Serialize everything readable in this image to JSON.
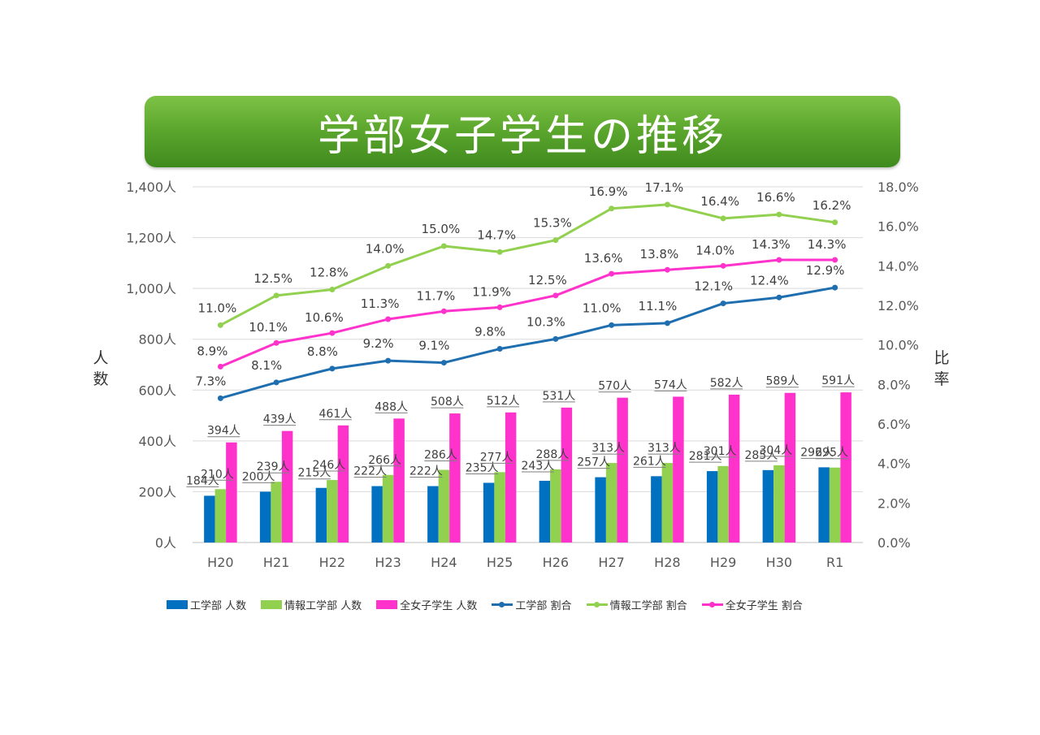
{
  "title": "学部女子学生の推移",
  "y_left_label": [
    "人",
    "数"
  ],
  "y_right_label": [
    "比",
    "率"
  ],
  "colors": {
    "engineering": "#0070c0",
    "info_engineering": "#92d050",
    "all_women": "#ff33cc",
    "engineering_line": "#1f6fb0",
    "info_line": "#92d050",
    "all_women_line": "#ff33cc"
  },
  "chart_data": {
    "type": "bar",
    "title": "学部女子学生の推移",
    "categories": [
      "H20",
      "H21",
      "H22",
      "H23",
      "H24",
      "H25",
      "H26",
      "H27",
      "H28",
      "H29",
      "H30",
      "R1"
    ],
    "y_left": {
      "ylim": [
        0,
        1400
      ],
      "ticks": [
        0,
        200,
        400,
        600,
        800,
        1000,
        1200,
        1400
      ],
      "tick_labels": [
        "0人",
        "200人",
        "400人",
        "600人",
        "800人",
        "1,000人",
        "1,200人",
        "1,400人"
      ]
    },
    "y_right": {
      "ylim": [
        0,
        18
      ],
      "ticks": [
        0,
        2,
        4,
        6,
        8,
        10,
        12,
        14,
        16,
        18
      ],
      "tick_labels": [
        "0.0%",
        "2.0%",
        "4.0%",
        "6.0%",
        "8.0%",
        "10.0%",
        "12.0%",
        "14.0%",
        "16.0%",
        "18.0%"
      ]
    },
    "bar_series": [
      {
        "name": "工学部 人数",
        "color_key": "engineering",
        "values": [
          184,
          200,
          215,
          222,
          222,
          235,
          243,
          257,
          261,
          281,
          285,
          296
        ],
        "labels": [
          "184人",
          "200人",
          "215人",
          "222人",
          "222人",
          "235人",
          "243人",
          "257人",
          "261人",
          "281人",
          "285人",
          "296人"
        ]
      },
      {
        "name": "情報工学部 人数",
        "color_key": "info_engineering",
        "values": [
          210,
          239,
          246,
          266,
          286,
          277,
          288,
          313,
          313,
          301,
          304,
          295
        ],
        "labels": [
          "210人",
          "239人",
          "246人",
          "266人",
          "286人",
          "277人",
          "288人",
          "313人",
          "313人",
          "301人",
          "304人",
          "295人"
        ]
      },
      {
        "name": "全女子学生 人数",
        "color_key": "all_women",
        "values": [
          394,
          439,
          461,
          488,
          508,
          512,
          531,
          570,
          574,
          582,
          589,
          591
        ],
        "labels": [
          "394人",
          "439人",
          "461人",
          "488人",
          "508人",
          "512人",
          "531人",
          "570人",
          "574人",
          "582人",
          "589人",
          "591人"
        ]
      }
    ],
    "line_series": [
      {
        "name": "工学部 割合",
        "color_key": "engineering_line",
        "values": [
          7.3,
          8.1,
          8.8,
          9.2,
          9.1,
          9.8,
          10.3,
          11.0,
          11.1,
          12.1,
          12.4,
          12.9
        ],
        "labels": [
          "7.3%",
          "8.1%",
          "8.8%",
          "9.2%",
          "9.1%",
          "9.8%",
          "10.3%",
          "11.0%",
          "11.1%",
          "12.1%",
          "12.4%",
          "12.9%"
        ]
      },
      {
        "name": "情報工学部 割合",
        "color_key": "info_line",
        "values": [
          11.0,
          12.5,
          12.8,
          14.0,
          15.0,
          14.7,
          15.3,
          16.9,
          17.1,
          16.4,
          16.6,
          16.2
        ],
        "labels": [
          "11.0%",
          "12.5%",
          "12.8%",
          "14.0%",
          "15.0%",
          "14.7%",
          "15.3%",
          "16.9%",
          "17.1%",
          "16.4%",
          "16.6%",
          "16.2%"
        ]
      },
      {
        "name": "全女子学生 割合",
        "color_key": "all_women_line",
        "values": [
          8.9,
          10.1,
          10.6,
          11.3,
          11.7,
          11.9,
          12.5,
          13.6,
          13.8,
          14.0,
          14.3,
          14.3
        ],
        "labels": [
          "8.9%",
          "10.1%",
          "10.6%",
          "11.3%",
          "11.7%",
          "11.9%",
          "12.5%",
          "13.6%",
          "13.8%",
          "14.0%",
          "14.3%",
          "14.3%"
        ]
      }
    ],
    "legend_position": "bottom"
  },
  "legend": [
    {
      "label": "工学部 人数",
      "kind": "bar",
      "color_key": "engineering"
    },
    {
      "label": "情報工学部 人数",
      "kind": "bar",
      "color_key": "info_engineering"
    },
    {
      "label": "全女子学生 人数",
      "kind": "bar",
      "color_key": "all_women"
    },
    {
      "label": "工学部 割合",
      "kind": "line",
      "color_key": "engineering_line"
    },
    {
      "label": "情報工学部 割合",
      "kind": "line",
      "color_key": "info_line"
    },
    {
      "label": "全女子学生 割合",
      "kind": "line",
      "color_key": "all_women_line"
    }
  ]
}
